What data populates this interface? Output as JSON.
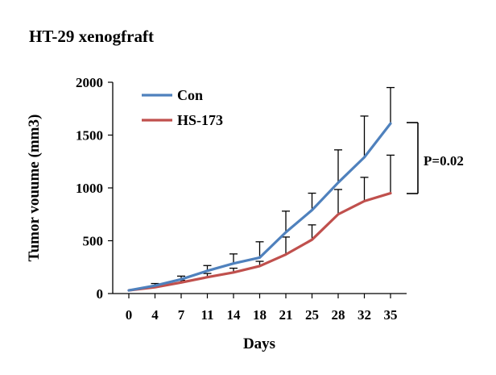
{
  "chart_data": {
    "type": "line",
    "title": "HT-29 xenogfraft",
    "xlabel": "Days",
    "ylabel": "Tumor vouume (mm3)",
    "x": [
      0,
      4,
      7,
      11,
      14,
      18,
      21,
      25,
      28,
      32,
      35
    ],
    "ylim": [
      0,
      2000
    ],
    "yticks": [
      0,
      500,
      1000,
      1500,
      2000
    ],
    "series": [
      {
        "name": "Con",
        "color": "#4f81bd",
        "values": [
          30,
          75,
          135,
          215,
          285,
          340,
          580,
          790,
          1050,
          1290,
          1610
        ],
        "error_upper": [
          30,
          95,
          165,
          265,
          375,
          490,
          780,
          950,
          1360,
          1680,
          1950
        ]
      },
      {
        "name": "HS-173",
        "color": "#c0504d",
        "values": [
          30,
          60,
          105,
          155,
          200,
          260,
          370,
          510,
          750,
          875,
          950
        ],
        "error_upper": [
          30,
          70,
          125,
          190,
          240,
          305,
          535,
          650,
          985,
          1100,
          1310
        ]
      }
    ],
    "legend_position": "top-left",
    "annotation": "P=0.02"
  }
}
